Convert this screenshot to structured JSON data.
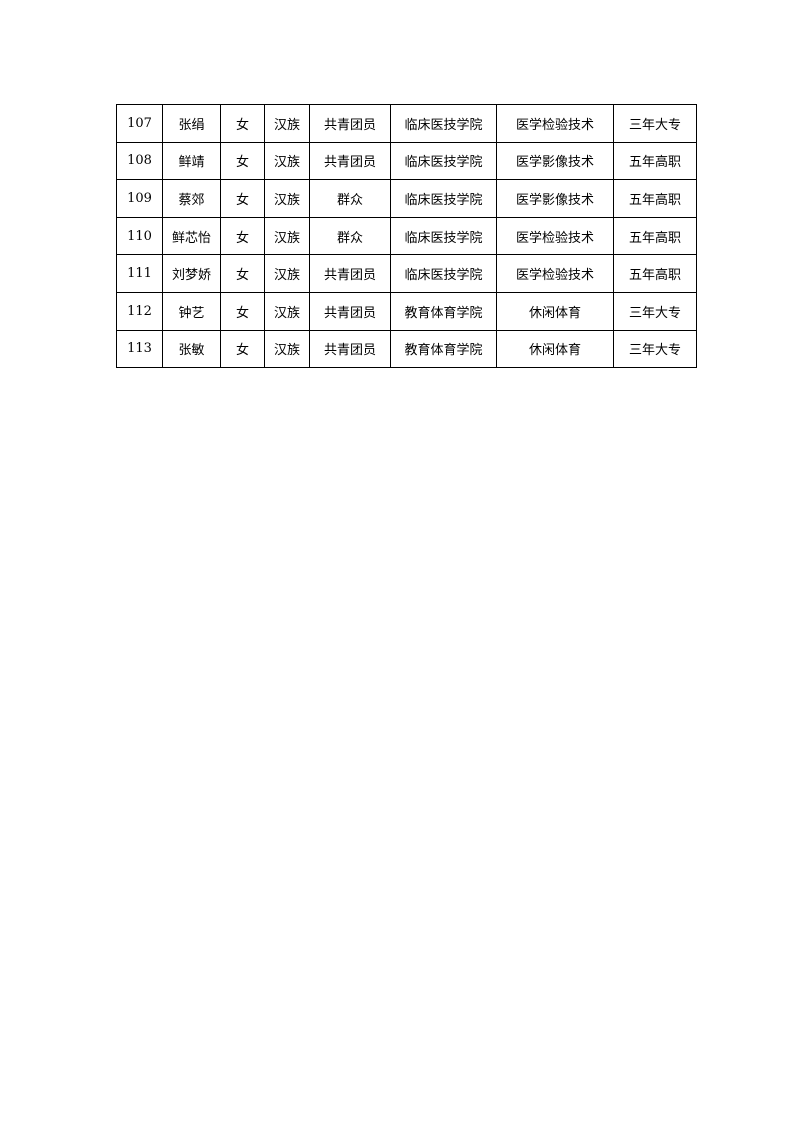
{
  "table": {
    "rows": [
      [
        "107",
        "张绢",
        "女",
        "汉族",
        "共青团员",
        "临床医技学院",
        "医学检验技术",
        "三年大专"
      ],
      [
        "108",
        "鲜靖",
        "女",
        "汉族",
        "共青团员",
        "临床医技学院",
        "医学影像技术",
        "五年高职"
      ],
      [
        "109",
        "蔡郊",
        "女",
        "汉族",
        "群众",
        "临床医技学院",
        "医学影像技术",
        "五年高职"
      ],
      [
        "110",
        "鲜芯怡",
        "女",
        "汉族",
        "群众",
        "临床医技学院",
        "医学检验技术",
        "五年高职"
      ],
      [
        "111",
        "刘梦娇",
        "女",
        "汉族",
        "共青团员",
        "临床医技学院",
        "医学检验技术",
        "五年高职"
      ],
      [
        "112",
        "钟艺",
        "女",
        "汉族",
        "共青团员",
        "教育体育学院",
        "休闲体育",
        "三年大专"
      ],
      [
        "113",
        "张敏",
        "女",
        "汉族",
        "共青团员",
        "教育体育学院",
        "休闲体育",
        "三年大专"
      ]
    ]
  }
}
